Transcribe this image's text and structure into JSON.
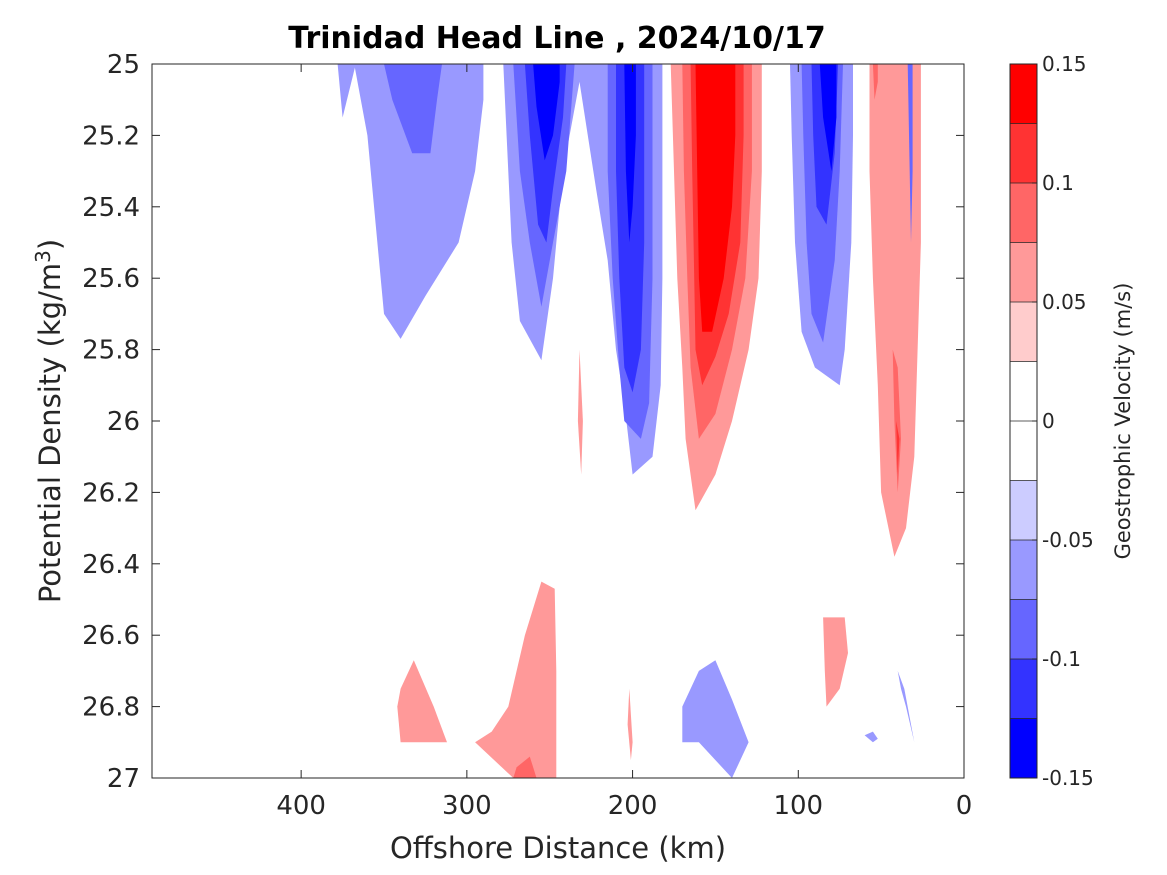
{
  "chart_data": {
    "type": "contour",
    "title": "Trinidad Head Line , 2024/10/17",
    "xlabel": "Offshore Distance (km)",
    "ylabel": "Potential Density (kg/m",
    "ylabel_sup": "3",
    "ylabel_close": ")",
    "xlim": [
      490,
      0
    ],
    "x_reversed": true,
    "ylim": [
      25,
      27
    ],
    "y_reversed": true,
    "xticks": [
      400,
      300,
      200,
      100,
      0
    ],
    "xtick_labels": [
      "400",
      "300",
      "200",
      "100",
      "0"
    ],
    "yticks": [
      25,
      25.2,
      25.4,
      25.6,
      25.8,
      26,
      26.2,
      26.4,
      26.6,
      26.8,
      27
    ],
    "ytick_labels": [
      "25",
      "25.2",
      "25.4",
      "25.6",
      "25.8",
      "26",
      "26.2",
      "26.4",
      "26.6",
      "26.8",
      "27"
    ],
    "colorbar": {
      "label": "Geostrophic Velocity (m/s)",
      "range": [
        -0.15,
        0.15
      ],
      "levels": [
        -0.15,
        -0.125,
        -0.1,
        -0.075,
        -0.05,
        -0.025,
        0,
        0.025,
        0.05,
        0.075,
        0.1,
        0.125,
        0.15
      ],
      "colors": [
        "#0000ff",
        "#3333ff",
        "#6666ff",
        "#9999ff",
        "#ccccff",
        "#ffffff",
        "#ffffff",
        "#ffcccc",
        "#ff9999",
        "#ff6666",
        "#ff3333",
        "#ff0000"
      ],
      "ticks": [
        0.15,
        0.1,
        0.05,
        0,
        -0.05,
        -0.1,
        -0.15
      ],
      "tick_labels": [
        "0.15",
        "0.1",
        "0.05",
        "0",
        "-0.05",
        "-0.1",
        "-0.15"
      ]
    },
    "regions": [
      {
        "level": -0.05,
        "pts": [
          [
            378,
            25
          ],
          [
            375,
            25.15
          ],
          [
            367,
            25.0
          ]
        ]
      },
      {
        "level": -0.05,
        "pts": [
          [
            368,
            25
          ],
          [
            360,
            25.2
          ],
          [
            355,
            25.45
          ],
          [
            350,
            25.7
          ],
          [
            340,
            25.77
          ],
          [
            325,
            25.65
          ],
          [
            305,
            25.5
          ],
          [
            295,
            25.3
          ],
          [
            290,
            25.1
          ],
          [
            290,
            25
          ]
        ]
      },
      {
        "level": -0.075,
        "pts": [
          [
            350,
            25
          ],
          [
            345,
            25.1
          ],
          [
            333,
            25.25
          ],
          [
            322,
            25.25
          ],
          [
            318,
            25.1
          ],
          [
            315,
            25
          ]
        ]
      },
      {
        "level": -0.05,
        "pts": [
          [
            278,
            25
          ],
          [
            276,
            25.2
          ],
          [
            273,
            25.5
          ],
          [
            268,
            25.72
          ],
          [
            255,
            25.83
          ],
          [
            248,
            25.6
          ],
          [
            242,
            25.3
          ],
          [
            232,
            25.05
          ],
          [
            222,
            25.35
          ],
          [
            215,
            25.55
          ],
          [
            210,
            25.8
          ],
          [
            205,
            25.95
          ],
          [
            200,
            26.15
          ],
          [
            188,
            26.1
          ],
          [
            183,
            25.9
          ],
          [
            182,
            25.6
          ],
          [
            182,
            25.2
          ],
          [
            182,
            25
          ]
        ]
      },
      {
        "level": -0.075,
        "pts": [
          [
            272,
            25
          ],
          [
            268,
            25.3
          ],
          [
            262,
            25.5
          ],
          [
            255,
            25.68
          ],
          [
            248,
            25.5
          ],
          [
            240,
            25.3
          ],
          [
            235,
            25
          ]
        ]
      },
      {
        "level": -0.1,
        "pts": [
          [
            265,
            25
          ],
          [
            262,
            25.2
          ],
          [
            257,
            25.45
          ],
          [
            252,
            25.5
          ],
          [
            248,
            25.35
          ],
          [
            242,
            25.15
          ],
          [
            240,
            25
          ]
        ]
      },
      {
        "level": -0.125,
        "pts": [
          [
            260,
            25
          ],
          [
            258,
            25.12
          ],
          [
            253,
            25.27
          ],
          [
            248,
            25.2
          ],
          [
            244,
            25.05
          ],
          [
            244,
            25
          ]
        ]
      },
      {
        "level": -0.15,
        "pts": [
          [
            254,
            25
          ],
          [
            252,
            25.05
          ],
          [
            248,
            25.03
          ],
          [
            246,
            25
          ]
        ]
      },
      {
        "level": -0.075,
        "pts": [
          [
            215,
            25
          ],
          [
            215,
            25.3
          ],
          [
            212,
            25.6
          ],
          [
            208,
            25.85
          ],
          [
            205,
            26.0
          ],
          [
            195,
            26.05
          ],
          [
            190,
            25.95
          ],
          [
            188,
            25.6
          ],
          [
            188,
            25.2
          ],
          [
            188,
            25
          ]
        ]
      },
      {
        "level": -0.1,
        "pts": [
          [
            210,
            25
          ],
          [
            210,
            25.3
          ],
          [
            208,
            25.6
          ],
          [
            205,
            25.85
          ],
          [
            200,
            25.92
          ],
          [
            195,
            25.8
          ],
          [
            193,
            25.5
          ],
          [
            193,
            25.2
          ],
          [
            193,
            25
          ]
        ]
      },
      {
        "level": -0.125,
        "pts": [
          [
            205,
            25
          ],
          [
            204,
            25.3
          ],
          [
            202,
            25.5
          ],
          [
            200,
            25.4
          ],
          [
            198,
            25.2
          ],
          [
            198,
            25
          ]
        ]
      },
      {
        "level": 0.05,
        "pts": [
          [
            177,
            25
          ],
          [
            175,
            25.3
          ],
          [
            173,
            25.6
          ],
          [
            170,
            25.85
          ],
          [
            168,
            26.05
          ],
          [
            162,
            26.25
          ],
          [
            150,
            26.15
          ],
          [
            140,
            26.0
          ],
          [
            130,
            25.8
          ],
          [
            124,
            25.6
          ],
          [
            122,
            25.3
          ],
          [
            122,
            25
          ]
        ]
      },
      {
        "level": 0.075,
        "pts": [
          [
            170,
            25
          ],
          [
            169,
            25.3
          ],
          [
            167,
            25.6
          ],
          [
            165,
            25.85
          ],
          [
            160,
            26.05
          ],
          [
            150,
            25.98
          ],
          [
            140,
            25.8
          ],
          [
            132,
            25.6
          ],
          [
            128,
            25.3
          ],
          [
            128,
            25
          ]
        ]
      },
      {
        "level": 0.1,
        "pts": [
          [
            165,
            25
          ],
          [
            164,
            25.3
          ],
          [
            163,
            25.55
          ],
          [
            162,
            25.8
          ],
          [
            158,
            25.9
          ],
          [
            150,
            25.82
          ],
          [
            142,
            25.7
          ],
          [
            135,
            25.5
          ],
          [
            133,
            25.2
          ],
          [
            133,
            25
          ]
        ]
      },
      {
        "level": 0.125,
        "pts": [
          [
            162,
            25
          ],
          [
            161,
            25.3
          ],
          [
            160,
            25.6
          ],
          [
            158,
            25.75
          ],
          [
            152,
            25.75
          ],
          [
            145,
            25.6
          ],
          [
            140,
            25.4
          ],
          [
            138,
            25.2
          ],
          [
            138,
            25
          ]
        ]
      },
      {
        "level": 0.15,
        "pts": [
          [
            158,
            25
          ],
          [
            157,
            25.3
          ],
          [
            155,
            25.5
          ],
          [
            150,
            25.58
          ],
          [
            145,
            25.45
          ],
          [
            142,
            25.2
          ],
          [
            142,
            25
          ]
        ]
      },
      {
        "level": -0.05,
        "pts": [
          [
            105,
            25
          ],
          [
            104,
            25.2
          ],
          [
            102,
            25.5
          ],
          [
            98,
            25.75
          ],
          [
            90,
            25.85
          ],
          [
            75,
            25.9
          ],
          [
            72,
            25.8
          ],
          [
            68,
            25.5
          ],
          [
            67,
            25.2
          ],
          [
            67,
            25
          ]
        ]
      },
      {
        "level": -0.075,
        "pts": [
          [
            98,
            25
          ],
          [
            97,
            25.2
          ],
          [
            95,
            25.5
          ],
          [
            92,
            25.7
          ],
          [
            85,
            25.78
          ],
          [
            78,
            25.55
          ],
          [
            75,
            25.3
          ],
          [
            73,
            25
          ]
        ]
      },
      {
        "level": -0.1,
        "pts": [
          [
            92,
            25
          ],
          [
            91,
            25.2
          ],
          [
            89,
            25.4
          ],
          [
            83,
            25.45
          ],
          [
            78,
            25.25
          ],
          [
            76,
            25
          ]
        ]
      },
      {
        "level": -0.125,
        "pts": [
          [
            87,
            25
          ],
          [
            85,
            25.15
          ],
          [
            80,
            25.3
          ],
          [
            77,
            25.15
          ],
          [
            77,
            25
          ]
        ]
      },
      {
        "level": 0.05,
        "pts": [
          [
            57,
            25
          ],
          [
            57,
            25.3
          ],
          [
            55,
            25.6
          ],
          [
            52,
            25.9
          ],
          [
            50,
            26.2
          ],
          [
            42,
            26.38
          ],
          [
            35,
            26.3
          ],
          [
            30,
            26.1
          ],
          [
            28,
            25.8
          ],
          [
            26,
            25.5
          ],
          [
            26,
            25
          ]
        ]
      },
      {
        "level": 0.075,
        "pts": [
          [
            55,
            25
          ],
          [
            54,
            25.1
          ],
          [
            52,
            25.05
          ],
          [
            52,
            25
          ]
        ]
      },
      {
        "level": 0.075,
        "pts": [
          [
            43,
            25.8
          ],
          [
            42,
            26.0
          ],
          [
            40,
            26.2
          ],
          [
            38,
            26.05
          ],
          [
            40,
            25.85
          ]
        ]
      },
      {
        "level": 0.1,
        "pts": [
          [
            41,
            26
          ],
          [
            40,
            26.15
          ],
          [
            39,
            26.05
          ]
        ]
      },
      {
        "level": -0.075,
        "pts": [
          [
            34,
            25
          ],
          [
            32,
            25.5
          ],
          [
            31,
            25.3
          ],
          [
            31,
            25
          ]
        ]
      },
      {
        "level": 0.05,
        "pts": [
          [
            232,
            25.8
          ],
          [
            230,
            26.0
          ],
          [
            231,
            26.15
          ],
          [
            233,
            26.0
          ]
        ]
      },
      {
        "level": 0.05,
        "pts": [
          [
            342,
            26.8
          ],
          [
            340,
            26.9
          ],
          [
            312,
            26.9
          ],
          [
            320,
            26.8
          ],
          [
            332,
            26.67
          ],
          [
            340,
            26.75
          ]
        ]
      },
      {
        "level": 0.05,
        "pts": [
          [
            295,
            26.9
          ],
          [
            285,
            26.87
          ],
          [
            275,
            26.8
          ],
          [
            265,
            26.6
          ],
          [
            255,
            26.45
          ],
          [
            247,
            26.47
          ],
          [
            246,
            26.7
          ],
          [
            246,
            27
          ],
          [
            272,
            27
          ]
        ]
      },
      {
        "level": 0.075,
        "pts": [
          [
            272,
            27
          ],
          [
            270,
            26.97
          ],
          [
            262,
            26.94
          ],
          [
            258,
            27
          ]
        ]
      },
      {
        "level": 0.05,
        "pts": [
          [
            202,
            26.75
          ],
          [
            200,
            26.9
          ],
          [
            201,
            26.95
          ],
          [
            203,
            26.85
          ]
        ]
      },
      {
        "level": -0.05,
        "pts": [
          [
            170,
            26.9
          ],
          [
            170,
            26.8
          ],
          [
            160,
            26.7
          ],
          [
            150,
            26.67
          ],
          [
            140,
            26.78
          ],
          [
            130,
            26.9
          ],
          [
            140,
            27
          ],
          [
            160,
            26.9
          ]
        ]
      },
      {
        "level": 0.05,
        "pts": [
          [
            85,
            26.55
          ],
          [
            84,
            26.7
          ],
          [
            83,
            26.8
          ],
          [
            75,
            26.75
          ],
          [
            70,
            26.65
          ],
          [
            72,
            26.55
          ]
        ]
      },
      {
        "level": -0.05,
        "pts": [
          [
            40,
            26.7
          ],
          [
            38,
            26.75
          ],
          [
            35,
            26.8
          ],
          [
            30,
            26.9
          ],
          [
            32,
            26.85
          ],
          [
            36,
            26.75
          ]
        ]
      },
      {
        "level": -0.05,
        "pts": [
          [
            60,
            26.88
          ],
          [
            55,
            26.9
          ],
          [
            52,
            26.89
          ],
          [
            55,
            26.87
          ]
        ]
      }
    ]
  }
}
